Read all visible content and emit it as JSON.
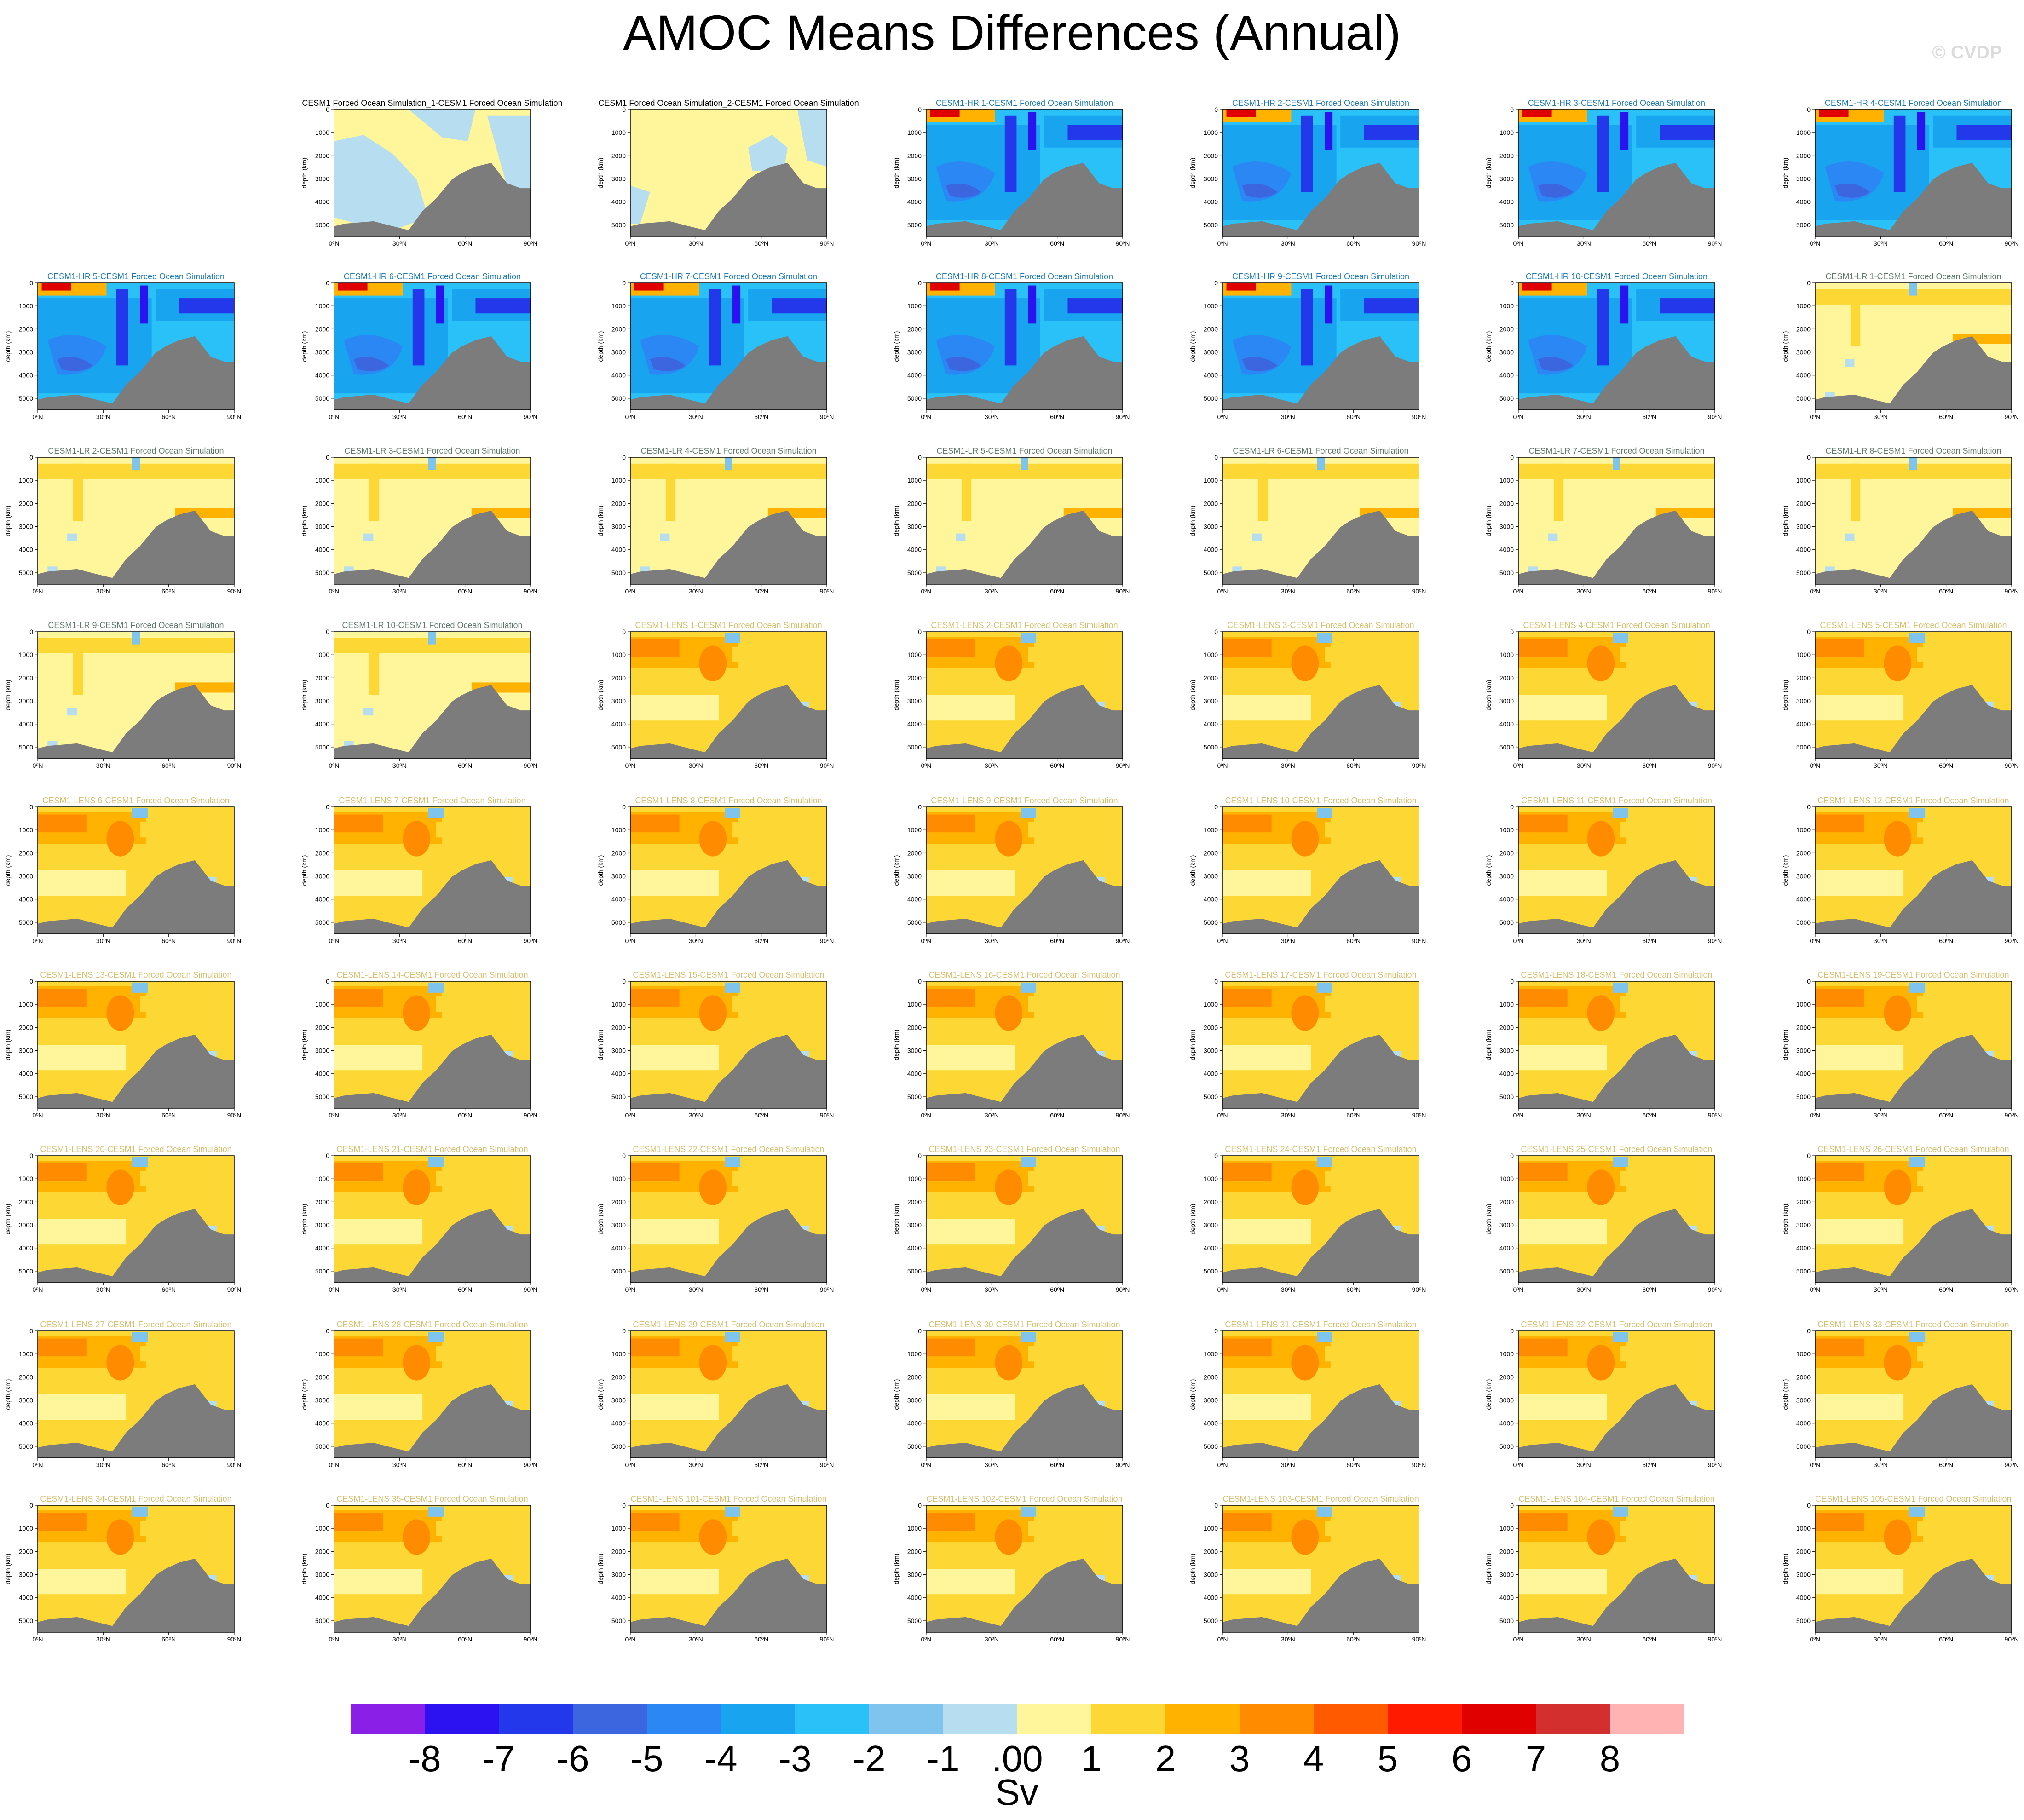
{
  "title": "AMOC Means Differences (Annual)",
  "watermark": "© CVDP",
  "chart_data": {
    "type": "heatmap",
    "title": "AMOC Means Differences (Annual)",
    "units": "Sv",
    "ylabel": "depth (km)",
    "x_ticks": [
      "0ºN",
      "30ºN",
      "60ºN",
      "90ºN"
    ],
    "y_ticks": [
      0,
      1000,
      2000,
      3000,
      4000,
      5000
    ],
    "colorbar": {
      "labels": [
        "-8",
        "-7",
        "-6",
        "-5",
        "-4",
        "-3",
        "-2",
        "-1",
        ".00",
        "1",
        "2",
        "3",
        "4",
        "5",
        "6",
        "7",
        "8"
      ],
      "colors": [
        "#8a1fe8",
        "#2c12f0",
        "#2338ea",
        "#3c66e0",
        "#2b87f3",
        "#19a4f0",
        "#29c1f7",
        "#7fc4ee",
        "#b6def0",
        "#fff59a",
        "#fdd835",
        "#ffb300",
        "#ff8c00",
        "#ff5a00",
        "#ff1a00",
        "#e00000",
        "#d32f2f",
        "#ffb3b3"
      ]
    },
    "panels": [
      {
        "title": "",
        "style": "empty",
        "title_color": "#000000"
      },
      {
        "title": "CESM1 Forced Ocean Simulation_1-CESM1 Forced Ocean Simulation",
        "style": "ctrl1",
        "title_color": "#000000"
      },
      {
        "title": "CESM1 Forced Ocean Simulation_2-CESM1 Forced Ocean Simulation",
        "style": "ctrl2",
        "title_color": "#000000"
      },
      {
        "title": "CESM1-HR 1-CESM1 Forced Ocean Simulation",
        "style": "hr",
        "title_color": "#1a7ab8"
      },
      {
        "title": "CESM1-HR 2-CESM1 Forced Ocean Simulation",
        "style": "hr",
        "title_color": "#1a7ab8"
      },
      {
        "title": "CESM1-HR 3-CESM1 Forced Ocean Simulation",
        "style": "hr",
        "title_color": "#1a7ab8"
      },
      {
        "title": "CESM1-HR 4-CESM1 Forced Ocean Simulation",
        "style": "hr",
        "title_color": "#1a7ab8"
      },
      {
        "title": "CESM1-HR 5-CESM1 Forced Ocean Simulation",
        "style": "hr",
        "title_color": "#1a7ab8"
      },
      {
        "title": "CESM1-HR 6-CESM1 Forced Ocean Simulation",
        "style": "hr",
        "title_color": "#1a7ab8"
      },
      {
        "title": "CESM1-HR 7-CESM1 Forced Ocean Simulation",
        "style": "hr",
        "title_color": "#1a7ab8"
      },
      {
        "title": "CESM1-HR 8-CESM1 Forced Ocean Simulation",
        "style": "hr",
        "title_color": "#1a7ab8"
      },
      {
        "title": "CESM1-HR 9-CESM1 Forced Ocean Simulation",
        "style": "hr",
        "title_color": "#1a7ab8"
      },
      {
        "title": "CESM1-HR 10-CESM1 Forced Ocean Simulation",
        "style": "hr",
        "title_color": "#1a7ab8"
      },
      {
        "title": "CESM1-LR 1-CESM1 Forced Ocean Simulation",
        "style": "lr",
        "title_color": "#5f7a6a"
      },
      {
        "title": "CESM1-LR 2-CESM1 Forced Ocean Simulation",
        "style": "lr",
        "title_color": "#5f7a6a"
      },
      {
        "title": "CESM1-LR 3-CESM1 Forced Ocean Simulation",
        "style": "lr",
        "title_color": "#5f7a6a"
      },
      {
        "title": "CESM1-LR 4-CESM1 Forced Ocean Simulation",
        "style": "lr",
        "title_color": "#5f7a6a"
      },
      {
        "title": "CESM1-LR 5-CESM1 Forced Ocean Simulation",
        "style": "lr",
        "title_color": "#5f7a6a"
      },
      {
        "title": "CESM1-LR 6-CESM1 Forced Ocean Simulation",
        "style": "lr",
        "title_color": "#5f7a6a"
      },
      {
        "title": "CESM1-LR 7-CESM1 Forced Ocean Simulation",
        "style": "lr",
        "title_color": "#5f7a6a"
      },
      {
        "title": "CESM1-LR 8-CESM1 Forced Ocean Simulation",
        "style": "lr",
        "title_color": "#5f7a6a"
      },
      {
        "title": "CESM1-LR 9-CESM1 Forced Ocean Simulation",
        "style": "lr",
        "title_color": "#5f7a6a"
      },
      {
        "title": "CESM1-LR 10-CESM1 Forced Ocean Simulation",
        "style": "lr",
        "title_color": "#5f7a6a"
      },
      {
        "title": "CESM1-LENS 1-CESM1 Forced Ocean Simulation",
        "style": "lens",
        "title_color": "#d8c070"
      },
      {
        "title": "CESM1-LENS 2-CESM1 Forced Ocean Simulation",
        "style": "lens",
        "title_color": "#d8c070"
      },
      {
        "title": "CESM1-LENS 3-CESM1 Forced Ocean Simulation",
        "style": "lens",
        "title_color": "#d8c070"
      },
      {
        "title": "CESM1-LENS 4-CESM1 Forced Ocean Simulation",
        "style": "lens",
        "title_color": "#d8c070"
      },
      {
        "title": "CESM1-LENS 5-CESM1 Forced Ocean Simulation",
        "style": "lens",
        "title_color": "#d8c070"
      },
      {
        "title": "CESM1-LENS 6-CESM1 Forced Ocean Simulation",
        "style": "lens",
        "title_color": "#d8c070"
      },
      {
        "title": "CESM1-LENS 7-CESM1 Forced Ocean Simulation",
        "style": "lens",
        "title_color": "#d8c070"
      },
      {
        "title": "CESM1-LENS 8-CESM1 Forced Ocean Simulation",
        "style": "lens",
        "title_color": "#d8c070"
      },
      {
        "title": "CESM1-LENS 9-CESM1 Forced Ocean Simulation",
        "style": "lens",
        "title_color": "#d8c070"
      },
      {
        "title": "CESM1-LENS 10-CESM1 Forced Ocean Simulation",
        "style": "lens",
        "title_color": "#d8c070"
      },
      {
        "title": "CESM1-LENS 11-CESM1 Forced Ocean Simulation",
        "style": "lens",
        "title_color": "#d8c070"
      },
      {
        "title": "CESM1-LENS 12-CESM1 Forced Ocean Simulation",
        "style": "lens",
        "title_color": "#d8c070"
      },
      {
        "title": "CESM1-LENS 13-CESM1 Forced Ocean Simulation",
        "style": "lens",
        "title_color": "#d8c070"
      },
      {
        "title": "CESM1-LENS 14-CESM1 Forced Ocean Simulation",
        "style": "lens",
        "title_color": "#d8c070"
      },
      {
        "title": "CESM1-LENS 15-CESM1 Forced Ocean Simulation",
        "style": "lens",
        "title_color": "#d8c070"
      },
      {
        "title": "CESM1-LENS 16-CESM1 Forced Ocean Simulation",
        "style": "lens",
        "title_color": "#d8c070"
      },
      {
        "title": "CESM1-LENS 17-CESM1 Forced Ocean Simulation",
        "style": "lens",
        "title_color": "#d8c070"
      },
      {
        "title": "CESM1-LENS 18-CESM1 Forced Ocean Simulation",
        "style": "lens",
        "title_color": "#d8c070"
      },
      {
        "title": "CESM1-LENS 19-CESM1 Forced Ocean Simulation",
        "style": "lens",
        "title_color": "#d8c070"
      },
      {
        "title": "CESM1-LENS 20-CESM1 Forced Ocean Simulation",
        "style": "lens",
        "title_color": "#d8c070"
      },
      {
        "title": "CESM1-LENS 21-CESM1 Forced Ocean Simulation",
        "style": "lens",
        "title_color": "#d8c070"
      },
      {
        "title": "CESM1-LENS 22-CESM1 Forced Ocean Simulation",
        "style": "lens",
        "title_color": "#d8c070"
      },
      {
        "title": "CESM1-LENS 23-CESM1 Forced Ocean Simulation",
        "style": "lens",
        "title_color": "#d8c070"
      },
      {
        "title": "CESM1-LENS 24-CESM1 Forced Ocean Simulation",
        "style": "lens",
        "title_color": "#d8c070"
      },
      {
        "title": "CESM1-LENS 25-CESM1 Forced Ocean Simulation",
        "style": "lens",
        "title_color": "#d8c070"
      },
      {
        "title": "CESM1-LENS 26-CESM1 Forced Ocean Simulation",
        "style": "lens",
        "title_color": "#d8c070"
      },
      {
        "title": "CESM1-LENS 27-CESM1 Forced Ocean Simulation",
        "style": "lens",
        "title_color": "#d8c070"
      },
      {
        "title": "CESM1-LENS 28-CESM1 Forced Ocean Simulation",
        "style": "lens",
        "title_color": "#d8c070"
      },
      {
        "title": "CESM1-LENS 29-CESM1 Forced Ocean Simulation",
        "style": "lens",
        "title_color": "#d8c070"
      },
      {
        "title": "CESM1-LENS 30-CESM1 Forced Ocean Simulation",
        "style": "lens",
        "title_color": "#d8c070"
      },
      {
        "title": "CESM1-LENS 31-CESM1 Forced Ocean Simulation",
        "style": "lens",
        "title_color": "#d8c070"
      },
      {
        "title": "CESM1-LENS 32-CESM1 Forced Ocean Simulation",
        "style": "lens",
        "title_color": "#d8c070"
      },
      {
        "title": "CESM1-LENS 33-CESM1 Forced Ocean Simulation",
        "style": "lens",
        "title_color": "#d8c070"
      },
      {
        "title": "CESM1-LENS 34-CESM1 Forced Ocean Simulation",
        "style": "lens",
        "title_color": "#d8c070"
      },
      {
        "title": "CESM1-LENS 35-CESM1 Forced Ocean Simulation",
        "style": "lens",
        "title_color": "#d8c070"
      },
      {
        "title": "CESM1-LENS 101-CESM1 Forced Ocean Simulation",
        "style": "lens",
        "title_color": "#d8c070"
      },
      {
        "title": "CESM1-LENS 102-CESM1 Forced Ocean Simulation",
        "style": "lens",
        "title_color": "#d8c070"
      },
      {
        "title": "CESM1-LENS 103-CESM1 Forced Ocean Simulation",
        "style": "lens",
        "title_color": "#d8c070"
      },
      {
        "title": "CESM1-LENS 104-CESM1 Forced Ocean Simulation",
        "style": "lens",
        "title_color": "#d8c070"
      },
      {
        "title": "CESM1-LENS 105-CESM1 Forced Ocean Simulation",
        "style": "lens",
        "title_color": "#d8c070"
      }
    ]
  }
}
